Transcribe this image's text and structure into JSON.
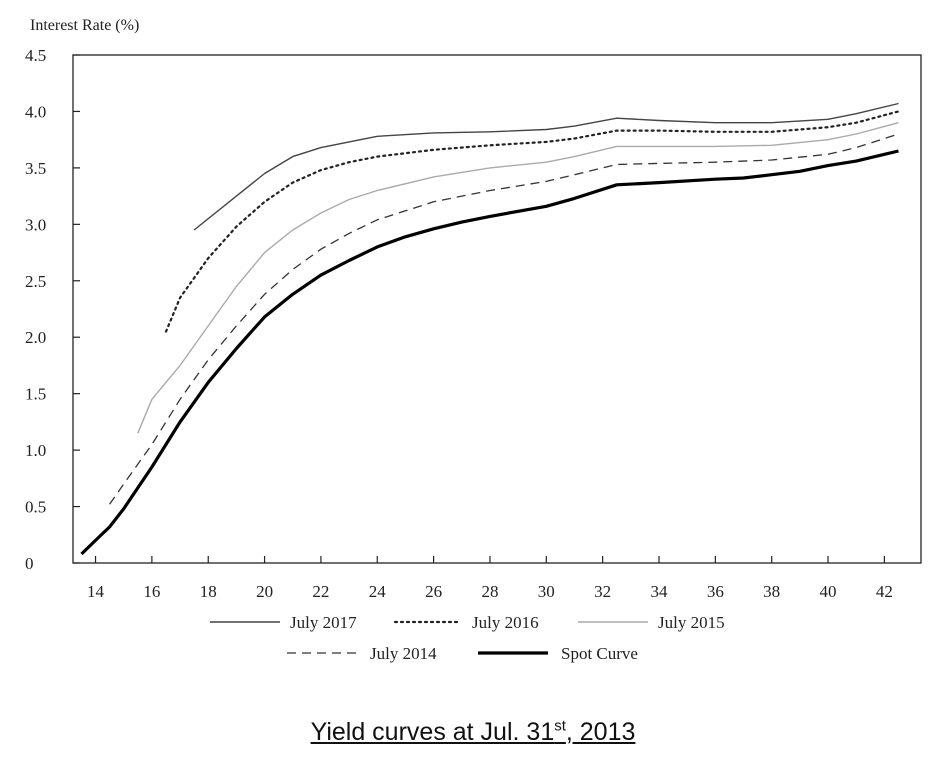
{
  "chart_data": {
    "type": "line",
    "ylabel": "Interest Rate (%)",
    "xlabel": "",
    "xlim": [
      13.2,
      43.3
    ],
    "ylim": [
      0,
      4.5
    ],
    "xticks": [
      "14",
      "16",
      "18",
      "20",
      "22",
      "24",
      "26",
      "28",
      "30",
      "32",
      "34",
      "36",
      "38",
      "40",
      "42"
    ],
    "yticks": [
      "0",
      "0.5",
      "1.0",
      "1.5",
      "2.0",
      "2.5",
      "3.0",
      "3.5",
      "4.0",
      "4.5"
    ],
    "grid": false,
    "legend_position": "bottom",
    "series": [
      {
        "name": "July 2017",
        "style": "thin-solid",
        "color": "#444444",
        "x": [
          17.5,
          19,
          20,
          21,
          22,
          23,
          24,
          26,
          28,
          30,
          31,
          32.5,
          34,
          36,
          38,
          40,
          41,
          42.5
        ],
        "y": [
          2.95,
          3.25,
          3.45,
          3.6,
          3.68,
          3.73,
          3.78,
          3.81,
          3.82,
          3.84,
          3.87,
          3.94,
          3.92,
          3.9,
          3.9,
          3.93,
          3.98,
          4.07
        ]
      },
      {
        "name": "July 2016",
        "style": "dotted",
        "color": "#222222",
        "x": [
          16.5,
          17,
          18,
          19,
          20,
          21,
          22,
          23,
          24,
          26,
          28,
          30,
          31,
          32.5,
          34,
          36,
          38,
          40,
          41,
          42.5
        ],
        "y": [
          2.05,
          2.35,
          2.7,
          2.98,
          3.2,
          3.37,
          3.48,
          3.55,
          3.6,
          3.66,
          3.7,
          3.73,
          3.76,
          3.83,
          3.83,
          3.82,
          3.82,
          3.86,
          3.9,
          4.0
        ]
      },
      {
        "name": "July 2015",
        "style": "thin-solid",
        "color": "#aaaaaa",
        "x": [
          15.5,
          16,
          17,
          18,
          19,
          20,
          21,
          22,
          23,
          24,
          26,
          28,
          30,
          31,
          32.5,
          34,
          36,
          38,
          40,
          41,
          42.5
        ],
        "y": [
          1.15,
          1.45,
          1.75,
          2.1,
          2.45,
          2.75,
          2.95,
          3.1,
          3.22,
          3.3,
          3.42,
          3.5,
          3.55,
          3.6,
          3.69,
          3.69,
          3.69,
          3.7,
          3.75,
          3.8,
          3.9
        ]
      },
      {
        "name": "July 2014",
        "style": "dashed",
        "color": "#333333",
        "x": [
          14.5,
          15,
          16,
          17,
          18,
          19,
          20,
          21,
          22,
          23,
          24,
          26,
          28,
          30,
          31,
          32.5,
          34,
          36,
          38,
          40,
          41,
          42.5
        ],
        "y": [
          0.52,
          0.7,
          1.05,
          1.45,
          1.8,
          2.1,
          2.38,
          2.6,
          2.78,
          2.92,
          3.04,
          3.2,
          3.3,
          3.38,
          3.44,
          3.53,
          3.54,
          3.55,
          3.57,
          3.62,
          3.68,
          3.8
        ]
      },
      {
        "name": "Spot Curve",
        "style": "thick-solid",
        "color": "#000000",
        "x": [
          13.5,
          14,
          14.5,
          15,
          16,
          17,
          18,
          19,
          20,
          21,
          22,
          23,
          24,
          25,
          26,
          27,
          28,
          30,
          31,
          32.5,
          34,
          36,
          37,
          38,
          39,
          40,
          41,
          42.5
        ],
        "y": [
          0.08,
          0.2,
          0.32,
          0.48,
          0.85,
          1.25,
          1.6,
          1.9,
          2.18,
          2.38,
          2.55,
          2.68,
          2.8,
          2.89,
          2.96,
          3.02,
          3.07,
          3.16,
          3.23,
          3.35,
          3.37,
          3.4,
          3.41,
          3.44,
          3.47,
          3.52,
          3.56,
          3.65
        ]
      }
    ]
  },
  "caption": {
    "prefix": "Yield curves at Jul. 31",
    "sup": "st",
    "suffix": ", 2013 "
  }
}
